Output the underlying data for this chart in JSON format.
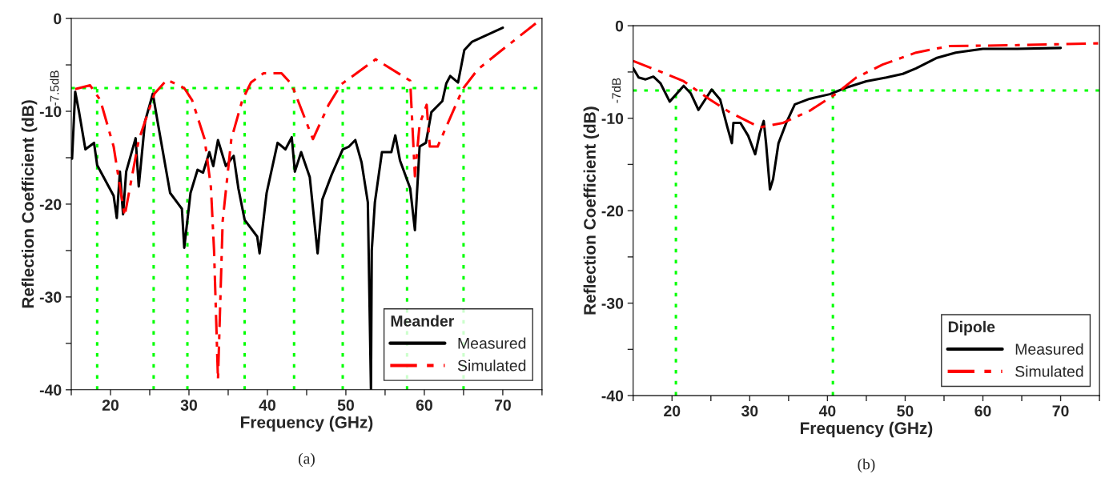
{
  "chart_data": [
    {
      "type": "line",
      "xlabel": "Frequency (GHz)",
      "ylabel": "Reflection Coefficient (dB)",
      "legend_title": "Meander",
      "legend": "bottom right",
      "grid": false,
      "xlim": [
        15,
        75
      ],
      "ylim": [
        -40,
        0
      ],
      "xticks": [
        {
          "value": 15,
          "label": null
        },
        20,
        {
          "value": 25,
          "label": null
        },
        30,
        {
          "value": 35,
          "label": null
        },
        40,
        {
          "value": 45,
          "label": null
        },
        50,
        {
          "value": 55,
          "label": null
        },
        60,
        {
          "value": 65,
          "label": null
        },
        70,
        {
          "value": 75,
          "label": null
        }
      ],
      "yticks": [
        0,
        {
          "value": -5,
          "label": null
        },
        -10,
        {
          "value": -15,
          "label": null
        },
        -20,
        {
          "value": -25,
          "label": null
        },
        -30,
        {
          "value": -35,
          "label": null
        },
        -40
      ],
      "series": [
        {
          "name": "Measured",
          "color": "#000000",
          "line_style": "solid",
          "x": [
            15.1,
            15.5,
            16.0,
            16.8,
            17.9,
            18.3,
            20.4,
            20.8,
            21.2,
            21.6,
            22.0,
            23.2,
            23.6,
            24.4,
            25.4,
            26.0,
            27.6,
            29.1,
            29.4,
            30.2,
            31.1,
            31.8,
            32.6,
            33.1,
            33.7,
            34.7,
            35.7,
            36.3,
            37.1,
            38.7,
            39.0,
            39.9,
            41.3,
            42.3,
            43.1,
            43.5,
            44.3,
            45.4,
            46.4,
            47.0,
            48.2,
            49.6,
            50.4,
            51.2,
            52.0,
            52.8,
            53.2,
            53.3,
            53.7,
            54.6,
            55.8,
            56.3,
            56.9,
            58.2,
            58.8,
            59.4,
            60.2,
            60.9,
            62.3,
            62.8,
            63.3,
            64.3,
            65.1,
            66.1,
            70.0
          ],
          "values": [
            -15.1,
            -7.9,
            -10.1,
            -14.1,
            -13.4,
            -15.8,
            -19.1,
            -21.5,
            -16.5,
            -21.1,
            -16.5,
            -12.9,
            -18.1,
            -11.1,
            -8.1,
            -11.1,
            -18.8,
            -20.5,
            -24.7,
            -18.8,
            -16.3,
            -16.6,
            -14.4,
            -15.9,
            -13.1,
            -15.9,
            -14.8,
            -18.3,
            -21.7,
            -23.5,
            -25.3,
            -18.8,
            -13.4,
            -14.1,
            -12.8,
            -16.5,
            -14.4,
            -17.1,
            -25.3,
            -19.5,
            -16.8,
            -14.1,
            -13.8,
            -13.1,
            -15.5,
            -19.8,
            -40.0,
            -25.0,
            -19.8,
            -14.4,
            -14.4,
            -12.6,
            -15.3,
            -18.3,
            -22.8,
            -13.8,
            -13.4,
            -10.1,
            -8.9,
            -7.0,
            -6.2,
            -6.9,
            -3.4,
            -2.5,
            -1.0
          ]
        },
        {
          "name": "Simulated",
          "color": "#ff0000",
          "line_style": "dashed",
          "x": [
            15.5,
            17.4,
            18.7,
            20.4,
            21.8,
            23.6,
            25.6,
            27.2,
            29.4,
            30.4,
            32.0,
            32.8,
            33.2,
            33.7,
            34.3,
            35.4,
            36.8,
            37.9,
            39.5,
            41.8,
            43.1,
            45.8,
            47.8,
            49.4,
            53.8,
            58.2,
            58.8,
            59.4,
            60.3,
            60.7,
            61.7,
            64.9,
            66.8,
            69.6,
            75.0
          ],
          "values": [
            -7.6,
            -7.2,
            -8.8,
            -13.8,
            -21.3,
            -13.1,
            -8.1,
            -6.6,
            -7.5,
            -8.8,
            -13.0,
            -18.2,
            -25.0,
            -38.9,
            -21.8,
            -13.0,
            -8.8,
            -6.9,
            -5.9,
            -5.9,
            -7.1,
            -13.0,
            -9.3,
            -7.1,
            -4.4,
            -6.7,
            -17.0,
            -11.4,
            -9.3,
            -13.8,
            -13.8,
            -7.6,
            -5.5,
            -3.6,
            0.0
          ]
        }
      ],
      "ref_lines": [
        {
          "axis": "y",
          "value": -7.5,
          "label": "-7.5dB",
          "color": "#00ff00",
          "line_style": "dotted"
        },
        {
          "axis": "x",
          "value": 18.3,
          "color": "#00ff00",
          "line_style": "dotted"
        },
        {
          "axis": "x",
          "value": 25.5,
          "color": "#00ff00",
          "line_style": "dotted"
        },
        {
          "axis": "x",
          "value": 29.8,
          "color": "#00ff00",
          "line_style": "dotted"
        },
        {
          "axis": "x",
          "value": 37.1,
          "color": "#00ff00",
          "line_style": "dotted"
        },
        {
          "axis": "x",
          "value": 43.4,
          "color": "#00ff00",
          "line_style": "dotted"
        },
        {
          "axis": "x",
          "value": 49.6,
          "color": "#00ff00",
          "line_style": "dotted"
        },
        {
          "axis": "x",
          "value": 57.8,
          "color": "#00ff00",
          "line_style": "dotted"
        },
        {
          "axis": "x",
          "value": 65.0,
          "color": "#00ff00",
          "line_style": "dotted"
        }
      ],
      "annotations": [
        "(a)"
      ]
    },
    {
      "type": "line",
      "xlabel": "Frequency (GHz)",
      "ylabel": "Reflection Coefficient (dB)",
      "legend_title": "Dipole",
      "legend": "bottom right",
      "grid": false,
      "xlim": [
        15,
        75
      ],
      "ylim": [
        -40,
        0
      ],
      "xticks": [
        {
          "value": 15,
          "label": null
        },
        20,
        {
          "value": 25,
          "label": null
        },
        30,
        {
          "value": 35,
          "label": null
        },
        40,
        {
          "value": 45,
          "label": null
        },
        50,
        {
          "value": 55,
          "label": null
        },
        60,
        {
          "value": 65,
          "label": null
        },
        70,
        {
          "value": 75,
          "label": null
        }
      ],
      "yticks": [
        0,
        {
          "value": -5,
          "label": null
        },
        -10,
        {
          "value": -15,
          "label": null
        },
        -20,
        {
          "value": -25,
          "label": null
        },
        -30,
        {
          "value": -35,
          "label": null
        },
        -40
      ],
      "series": [
        {
          "name": "Measured",
          "color": "#000000",
          "line_style": "solid",
          "x": [
            15.0,
            15.7,
            16.6,
            17.6,
            18.5,
            19.7,
            21.5,
            22.4,
            23.4,
            25.1,
            26.2,
            27.1,
            27.7,
            27.9,
            28.8,
            29.8,
            30.7,
            31.3,
            31.8,
            32.1,
            32.6,
            33.0,
            33.7,
            34.7,
            35.8,
            37.7,
            40.3,
            42.4,
            45.0,
            47.6,
            49.7,
            51.4,
            54.0,
            56.5,
            60.0,
            64.2,
            70.0
          ],
          "values": [
            -4.6,
            -5.6,
            -5.8,
            -5.5,
            -6.2,
            -8.2,
            -6.5,
            -7.3,
            -9.1,
            -6.9,
            -8.0,
            -10.9,
            -12.7,
            -10.5,
            -10.5,
            -11.9,
            -13.9,
            -11.6,
            -10.3,
            -12.7,
            -17.7,
            -16.6,
            -12.7,
            -10.5,
            -8.5,
            -7.9,
            -7.4,
            -6.7,
            -6.0,
            -5.6,
            -5.2,
            -4.6,
            -3.5,
            -2.9,
            -2.5,
            -2.5,
            -2.4
          ]
        },
        {
          "name": "Simulated",
          "color": "#ff0000",
          "line_style": "dashed",
          "x": [
            15.0,
            18.9,
            21.5,
            24.9,
            27.5,
            31.3,
            34.3,
            37.7,
            41.2,
            43.7,
            47.1,
            51.4,
            55.7,
            64.2,
            75.0
          ],
          "values": [
            -3.8,
            -5.1,
            -6.0,
            -8.0,
            -9.4,
            -11.0,
            -10.5,
            -9.2,
            -7.3,
            -5.6,
            -4.2,
            -2.9,
            -2.2,
            -2.1,
            -1.9
          ]
        }
      ],
      "ref_lines": [
        {
          "axis": "y",
          "value": -7,
          "label": "-7dB",
          "color": "#00ff00",
          "line_style": "dotted"
        },
        {
          "axis": "x",
          "value": 20.5,
          "color": "#00ff00",
          "line_style": "dotted"
        },
        {
          "axis": "x",
          "value": 40.7,
          "color": "#00ff00",
          "line_style": "dotted"
        }
      ],
      "annotations": [
        "(b)"
      ]
    }
  ]
}
